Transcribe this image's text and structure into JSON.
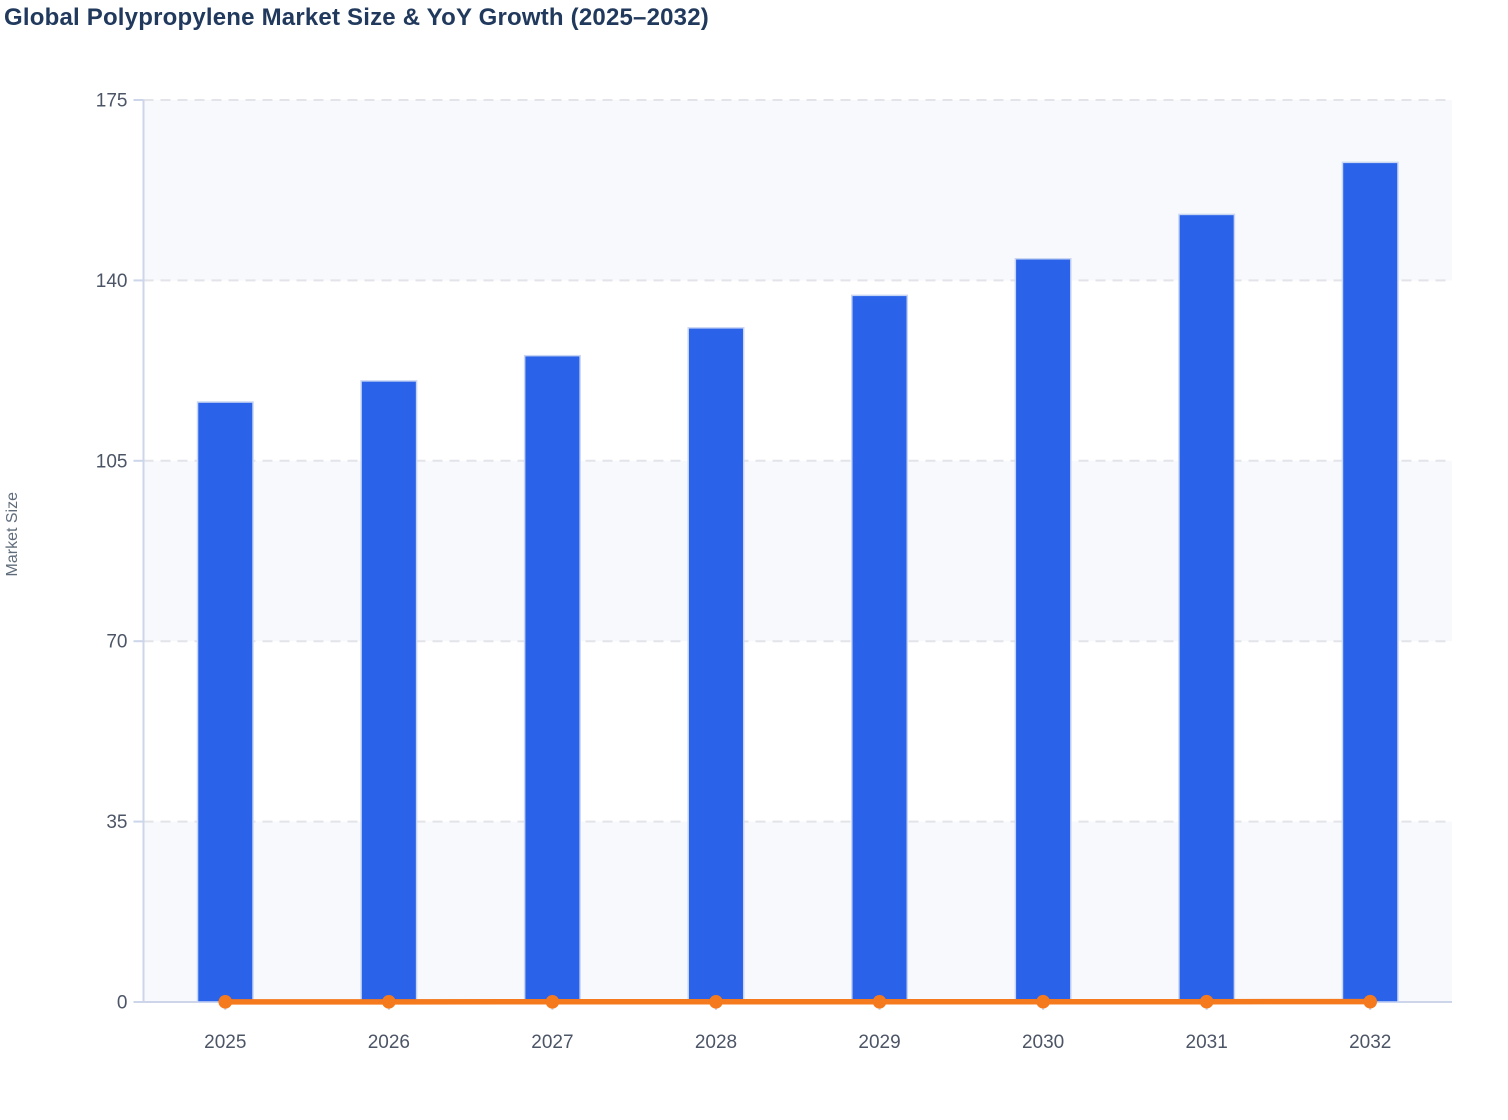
{
  "chart_data": {
    "type": "combo-bar-line",
    "title": "Global Polypropylene Market Size & YoY Growth (2025–2032)",
    "xlabel": "",
    "ylabel": "Market Size",
    "categories": [
      "2025",
      "2026",
      "2027",
      "2028",
      "2029",
      "2030",
      "2031",
      "2032"
    ],
    "y_ticks": [
      0,
      35,
      70,
      105,
      140,
      175
    ],
    "ylim": [
      0,
      175
    ],
    "grid": "horizontal dashed gridlines with alternating light band fills",
    "legend_position": "none",
    "series": [
      {
        "name": "Market Size",
        "type": "bar",
        "color": "#2a63e9",
        "values": [
          116.4,
          120.5,
          125.4,
          130.8,
          137.1,
          144.2,
          152.8,
          162.9
        ]
      },
      {
        "name": "YoY Growth",
        "type": "line",
        "color": "#f5791d",
        "marker": "circle",
        "values": [
          0.035,
          0.035,
          0.04,
          0.044,
          0.047,
          0.053,
          0.06,
          0.065
        ],
        "note": "plotted on the shared Market Size axis, so the line renders flat at ≈0 along the baseline"
      }
    ]
  },
  "colors": {
    "background": "#ffffff",
    "title_text": "#20395c",
    "tick_text": "#4c5566",
    "axis_title_text": "#5f6c7b",
    "axis_line": "#ccd5ea",
    "grid_line": "#e2e4e9",
    "band_fill": "#f7f9fc",
    "bar_stroke": "#c9d6f3"
  }
}
